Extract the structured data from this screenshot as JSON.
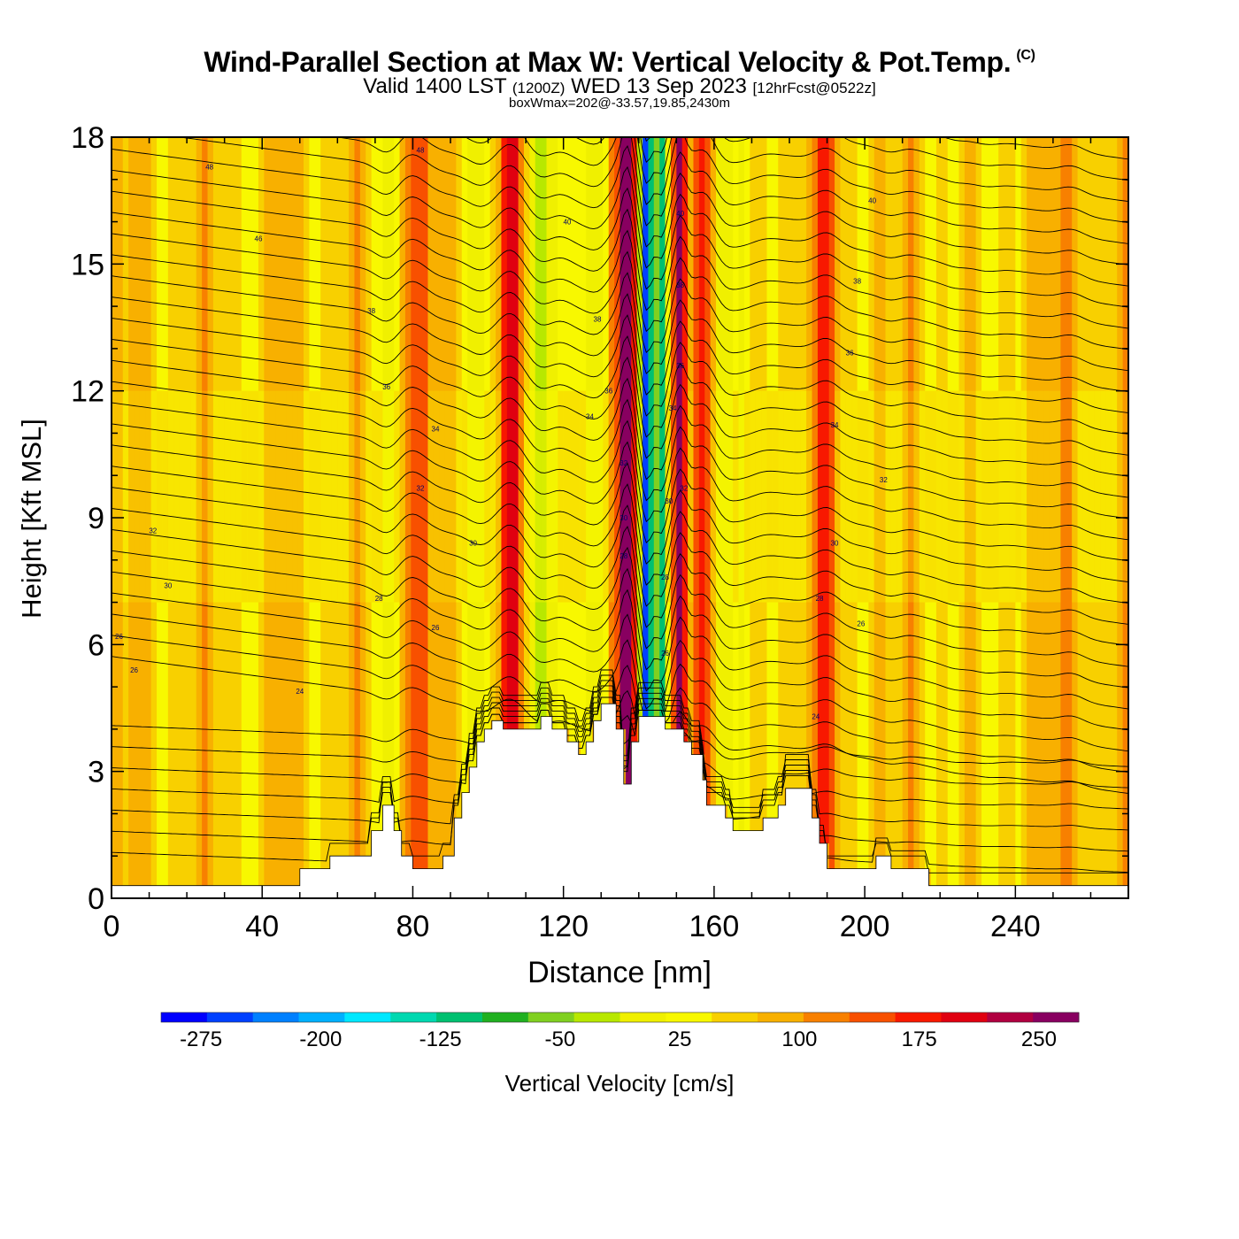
{
  "title": {
    "main": "Wind-Parallel Section at Max W: Vertical Velocity & Pot.Temp.",
    "copyright": "(C)",
    "valid_prefix": "Valid 1400 LST",
    "valid_utc": "(1200Z)",
    "valid_date": "WED 13 Sep 2023",
    "forecast": "[12hrFcst@0522z]",
    "box_wmax": "boxWmax=202@-33.57,19.85,2430m"
  },
  "chart_data": {
    "type": "heatmap",
    "xlabel": "Distance [nm]",
    "ylabel": "Height [Kft MSL]",
    "xlim": [
      0,
      270
    ],
    "ylim": [
      0,
      18
    ],
    "x_ticks": [
      0,
      40,
      80,
      120,
      160,
      200,
      240
    ],
    "y_ticks": [
      0,
      3,
      6,
      9,
      12,
      15,
      18
    ],
    "colorbar": {
      "label": "Vertical Velocity [cm/s]",
      "min": -300,
      "max": 275,
      "step": 25,
      "tick_labels": [
        -275,
        -200,
        -125,
        -50,
        25,
        100,
        175,
        250
      ],
      "colors": [
        "#0000ff",
        "#0040ff",
        "#0080ff",
        "#00b0ff",
        "#00e8ff",
        "#00d8b0",
        "#00c070",
        "#20b020",
        "#80d020",
        "#b8e800",
        "#f0f000",
        "#f8f800",
        "#f8d000",
        "#f8b000",
        "#f88000",
        "#f85000",
        "#f81800",
        "#e00010",
        "#b00040",
        "#880060"
      ]
    },
    "terrain_kft": [
      [
        0,
        0.3
      ],
      [
        50,
        0.3
      ],
      [
        50,
        0.7
      ],
      [
        58,
        0.7
      ],
      [
        58,
        1.0
      ],
      [
        69,
        1.0
      ],
      [
        69,
        1.6
      ],
      [
        72,
        1.6
      ],
      [
        72,
        2.2
      ],
      [
        75,
        2.2
      ],
      [
        75,
        1.6
      ],
      [
        77,
        1.6
      ],
      [
        77,
        1.0
      ],
      [
        80,
        1.0
      ],
      [
        80,
        0.7
      ],
      [
        88,
        0.7
      ],
      [
        88,
        1.0
      ],
      [
        91,
        1.0
      ],
      [
        91,
        1.9
      ],
      [
        93,
        1.9
      ],
      [
        93,
        2.5
      ],
      [
        95,
        2.5
      ],
      [
        95,
        3.1
      ],
      [
        97,
        3.1
      ],
      [
        97,
        3.7
      ],
      [
        99,
        3.7
      ],
      [
        99,
        4.0
      ],
      [
        101,
        4.0
      ],
      [
        101,
        4.2
      ],
      [
        104,
        4.2
      ],
      [
        104,
        4.0
      ],
      [
        114,
        4.0
      ],
      [
        114,
        4.3
      ],
      [
        117,
        4.3
      ],
      [
        117,
        4.0
      ],
      [
        121,
        4.0
      ],
      [
        121,
        3.7
      ],
      [
        124,
        3.7
      ],
      [
        124,
        3.4
      ],
      [
        126,
        3.4
      ],
      [
        126,
        3.7
      ],
      [
        128,
        3.7
      ],
      [
        128,
        4.2
      ],
      [
        130,
        4.2
      ],
      [
        130,
        4.6
      ],
      [
        134,
        4.6
      ],
      [
        134,
        4.0
      ],
      [
        136,
        4.0
      ],
      [
        136,
        2.7
      ],
      [
        138,
        2.7
      ],
      [
        138,
        3.7
      ],
      [
        140,
        3.7
      ],
      [
        140,
        4.3
      ],
      [
        147,
        4.3
      ],
      [
        147,
        4.0
      ],
      [
        152,
        4.0
      ],
      [
        152,
        3.7
      ],
      [
        154,
        3.7
      ],
      [
        154,
        3.4
      ],
      [
        157,
        3.4
      ],
      [
        157,
        2.8
      ],
      [
        158,
        2.8
      ],
      [
        158,
        2.2
      ],
      [
        163,
        2.2
      ],
      [
        163,
        1.9
      ],
      [
        165,
        1.9
      ],
      [
        165,
        1.6
      ],
      [
        173,
        1.6
      ],
      [
        173,
        1.9
      ],
      [
        177,
        1.9
      ],
      [
        177,
        2.2
      ],
      [
        179,
        2.2
      ],
      [
        179,
        2.6
      ],
      [
        186,
        2.6
      ],
      [
        186,
        1.9
      ],
      [
        188,
        1.9
      ],
      [
        188,
        1.3
      ],
      [
        190,
        1.3
      ],
      [
        190,
        0.7
      ],
      [
        203,
        0.7
      ],
      [
        203,
        1.0
      ],
      [
        207,
        1.0
      ],
      [
        207,
        0.7
      ],
      [
        217,
        0.7
      ],
      [
        217,
        0.3
      ],
      [
        270,
        0.3
      ]
    ],
    "updrafts": [
      {
        "x": 137,
        "value": 250
      },
      {
        "x": 151,
        "value": 175
      },
      {
        "x": 158,
        "value": 125
      },
      {
        "x": 134,
        "value": 100
      },
      {
        "x": 106,
        "value": 100
      },
      {
        "x": 78,
        "value": 75
      },
      {
        "x": 190,
        "value": 75
      },
      {
        "x": 210,
        "value": 40
      },
      {
        "x": 82,
        "value": 40
      },
      {
        "x": 255,
        "value": 40
      }
    ],
    "downdrafts": [
      {
        "x": 142,
        "value": -275
      },
      {
        "x": 146,
        "value": -200
      },
      {
        "x": 130,
        "value": -100
      },
      {
        "x": 162,
        "value": -100
      },
      {
        "x": 74,
        "value": -75
      },
      {
        "x": 114,
        "value": -75
      },
      {
        "x": 98,
        "value": -50
      },
      {
        "x": 124,
        "value": -50
      },
      {
        "x": 168,
        "value": -50
      },
      {
        "x": 208,
        "value": -50
      },
      {
        "x": 224,
        "value": -25
      },
      {
        "x": 232,
        "value": -25
      }
    ],
    "isentrope_labels": [
      {
        "x": 26,
        "y": 17.3,
        "text": "48"
      },
      {
        "x": 82,
        "y": 17.7,
        "text": "48"
      },
      {
        "x": 39,
        "y": 15.6,
        "text": "46"
      },
      {
        "x": 69,
        "y": 13.9,
        "text": "38"
      },
      {
        "x": 73,
        "y": 12.1,
        "text": "36"
      },
      {
        "x": 86,
        "y": 11.1,
        "text": "34"
      },
      {
        "x": 82,
        "y": 9.7,
        "text": "32"
      },
      {
        "x": 11,
        "y": 8.7,
        "text": "32"
      },
      {
        "x": 96,
        "y": 8.4,
        "text": "30"
      },
      {
        "x": 15,
        "y": 7.4,
        "text": "30"
      },
      {
        "x": 71,
        "y": 7.1,
        "text": "28"
      },
      {
        "x": 86,
        "y": 6.4,
        "text": "26"
      },
      {
        "x": 2,
        "y": 6.2,
        "text": "26"
      },
      {
        "x": 6,
        "y": 5.4,
        "text": "26"
      },
      {
        "x": 50,
        "y": 4.9,
        "text": "24"
      },
      {
        "x": 121,
        "y": 16.0,
        "text": "40"
      },
      {
        "x": 129,
        "y": 13.7,
        "text": "38"
      },
      {
        "x": 132,
        "y": 12.0,
        "text": "36"
      },
      {
        "x": 127,
        "y": 11.4,
        "text": "34"
      },
      {
        "x": 136,
        "y": 10.3,
        "text": "32"
      },
      {
        "x": 136,
        "y": 9.0,
        "text": "30"
      },
      {
        "x": 136,
        "y": 8.1,
        "text": "28"
      },
      {
        "x": 151,
        "y": 16.2,
        "text": "40"
      },
      {
        "x": 151,
        "y": 14.5,
        "text": "38"
      },
      {
        "x": 151,
        "y": 12.6,
        "text": "36"
      },
      {
        "x": 149,
        "y": 11.6,
        "text": "34"
      },
      {
        "x": 152,
        "y": 9.7,
        "text": "32"
      },
      {
        "x": 148,
        "y": 9.4,
        "text": "30"
      },
      {
        "x": 147,
        "y": 7.6,
        "text": "28"
      },
      {
        "x": 147,
        "y": 5.8,
        "text": "26"
      },
      {
        "x": 202,
        "y": 16.5,
        "text": "40"
      },
      {
        "x": 198,
        "y": 14.6,
        "text": "38"
      },
      {
        "x": 196,
        "y": 12.9,
        "text": "36"
      },
      {
        "x": 192,
        "y": 11.2,
        "text": "34"
      },
      {
        "x": 205,
        "y": 9.9,
        "text": "32"
      },
      {
        "x": 192,
        "y": 8.4,
        "text": "30"
      },
      {
        "x": 188,
        "y": 7.1,
        "text": "28"
      },
      {
        "x": 199,
        "y": 6.5,
        "text": "26"
      },
      {
        "x": 187,
        "y": 4.3,
        "text": "24"
      }
    ]
  }
}
